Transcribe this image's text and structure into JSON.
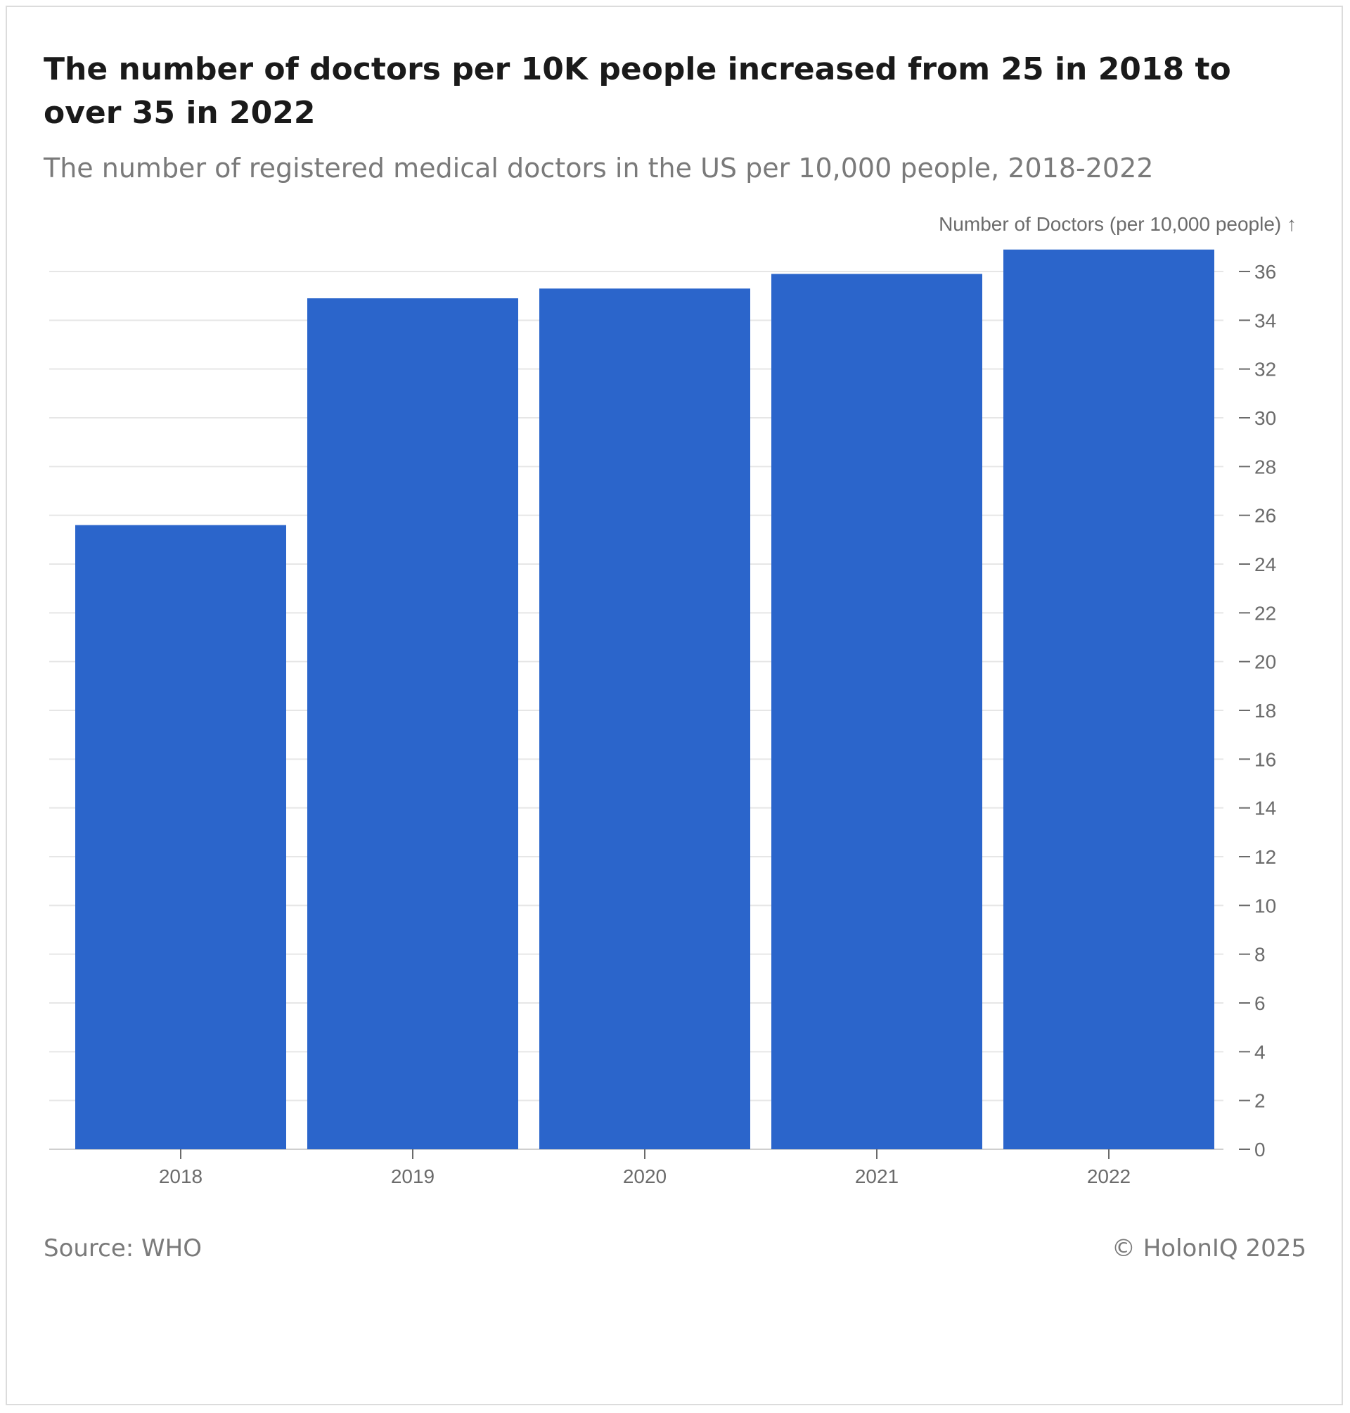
{
  "chart_data": {
    "type": "bar",
    "title": "The number of doctors per 10K people increased from 25 in 2018 to over 35 in 2022",
    "subtitle": "The number of registered medical doctors in the US per 10,000 people, 2018-2022",
    "ylabel": "Number of Doctors (per 10,000 people) ↑",
    "xlabel": "",
    "categories": [
      "2018",
      "2019",
      "2020",
      "2021",
      "2022"
    ],
    "values": [
      25.6,
      34.9,
      35.3,
      35.9,
      36.9
    ],
    "ylim": [
      0,
      36
    ],
    "yticks": [
      0,
      2,
      4,
      6,
      8,
      10,
      12,
      14,
      16,
      18,
      20,
      22,
      24,
      26,
      28,
      30,
      32,
      34,
      36
    ],
    "y_axis_side": "right",
    "grid": true,
    "bar_color": "#2b65cb"
  },
  "footer": {
    "source": "Source: WHO",
    "copyright": "© HolonIQ 2025"
  }
}
